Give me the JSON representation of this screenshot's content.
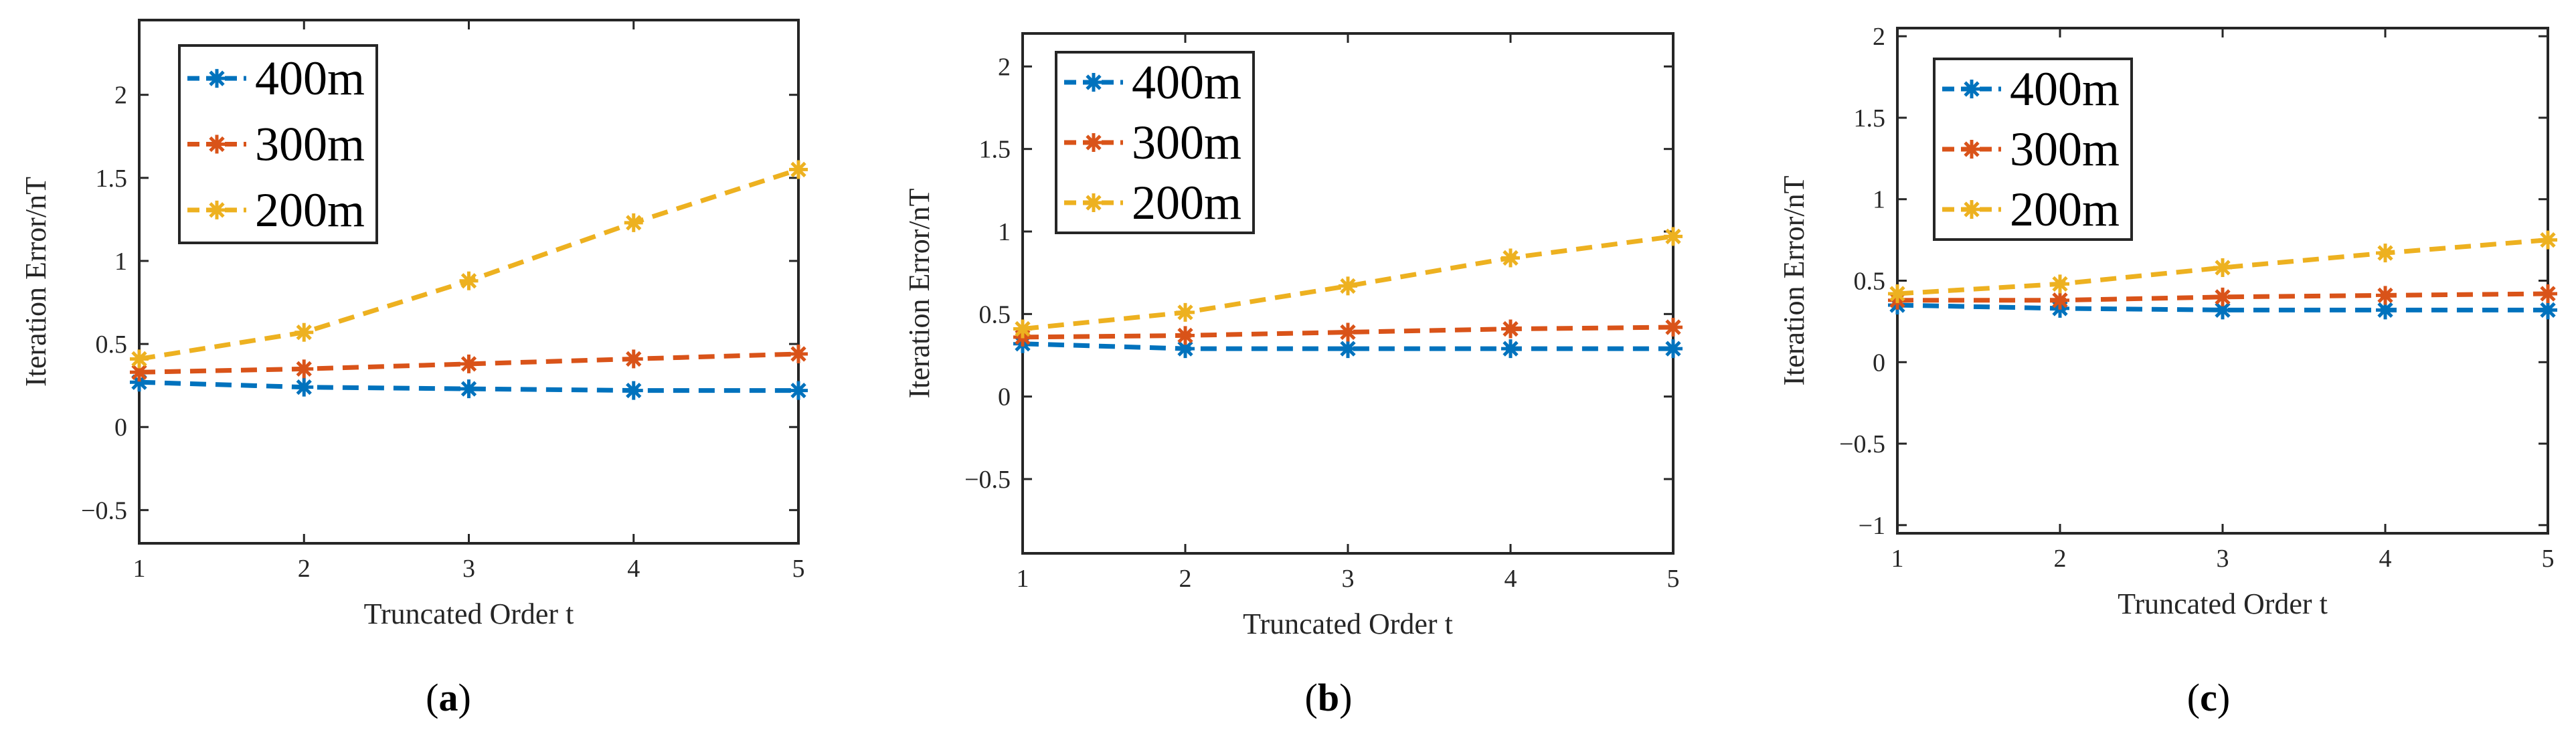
{
  "chart_data": [
    {
      "type": "line",
      "caption": "a",
      "xlabel": "Truncated Order t",
      "ylabel": "Iteration Error/nT",
      "x": [
        1,
        2,
        3,
        4,
        5
      ],
      "xlim": [
        1,
        5
      ],
      "ylim": [
        -0.7,
        2.45
      ],
      "xticks": [
        1,
        2,
        3,
        4,
        5
      ],
      "yticks": [
        -0.5,
        0,
        0.5,
        1,
        1.5,
        2
      ],
      "ytick_labels": [
        "−0.5",
        "0",
        "0.5",
        "1",
        "1.5",
        "2"
      ],
      "legend_position": "top-left",
      "series": [
        {
          "name": "400m",
          "color": "#0072BD",
          "values": [
            0.27,
            0.24,
            0.23,
            0.22,
            0.22
          ]
        },
        {
          "name": "300m",
          "color": "#D95319",
          "values": [
            0.33,
            0.35,
            0.38,
            0.41,
            0.44
          ]
        },
        {
          "name": "200m",
          "color": "#EDB120",
          "values": [
            0.41,
            0.57,
            0.88,
            1.23,
            1.55
          ]
        }
      ]
    },
    {
      "type": "line",
      "caption": "b",
      "xlabel": "Truncated Order t",
      "ylabel": "Iteration Error/nT",
      "x": [
        1,
        2,
        3,
        4,
        5
      ],
      "xlim": [
        1,
        5
      ],
      "ylim": [
        -0.95,
        2.2
      ],
      "xticks": [
        1,
        2,
        3,
        4,
        5
      ],
      "yticks": [
        -0.5,
        0,
        0.5,
        1,
        1.5,
        2
      ],
      "ytick_labels": [
        "−0.5",
        "0",
        "0.5",
        "1",
        "1.5",
        "2"
      ],
      "legend_position": "top-left",
      "series": [
        {
          "name": "400m",
          "color": "#0072BD",
          "values": [
            0.32,
            0.29,
            0.29,
            0.29,
            0.29
          ]
        },
        {
          "name": "300m",
          "color": "#D95319",
          "values": [
            0.36,
            0.37,
            0.39,
            0.41,
            0.42
          ]
        },
        {
          "name": "200m",
          "color": "#EDB120",
          "values": [
            0.41,
            0.51,
            0.67,
            0.84,
            0.97
          ]
        }
      ]
    },
    {
      "type": "line",
      "caption": "c",
      "xlabel": "Truncated Order t",
      "ylabel": "Iteration Error/nT",
      "x": [
        1,
        2,
        3,
        4,
        5
      ],
      "xlim": [
        1,
        5
      ],
      "ylim": [
        -1.05,
        2.05
      ],
      "xticks": [
        1,
        2,
        3,
        4,
        5
      ],
      "yticks": [
        -1,
        -0.5,
        0,
        0.5,
        1,
        1.5,
        2
      ],
      "ytick_labels": [
        "−1",
        "−0.5",
        "0",
        "0.5",
        "1",
        "1.5",
        "2"
      ],
      "legend_position": "top-left",
      "series": [
        {
          "name": "400m",
          "color": "#0072BD",
          "values": [
            0.35,
            0.33,
            0.32,
            0.32,
            0.32
          ]
        },
        {
          "name": "300m",
          "color": "#D95319",
          "values": [
            0.38,
            0.38,
            0.4,
            0.41,
            0.42
          ]
        },
        {
          "name": "200m",
          "color": "#EDB120",
          "values": [
            0.42,
            0.48,
            0.58,
            0.67,
            0.75
          ]
        }
      ]
    }
  ]
}
